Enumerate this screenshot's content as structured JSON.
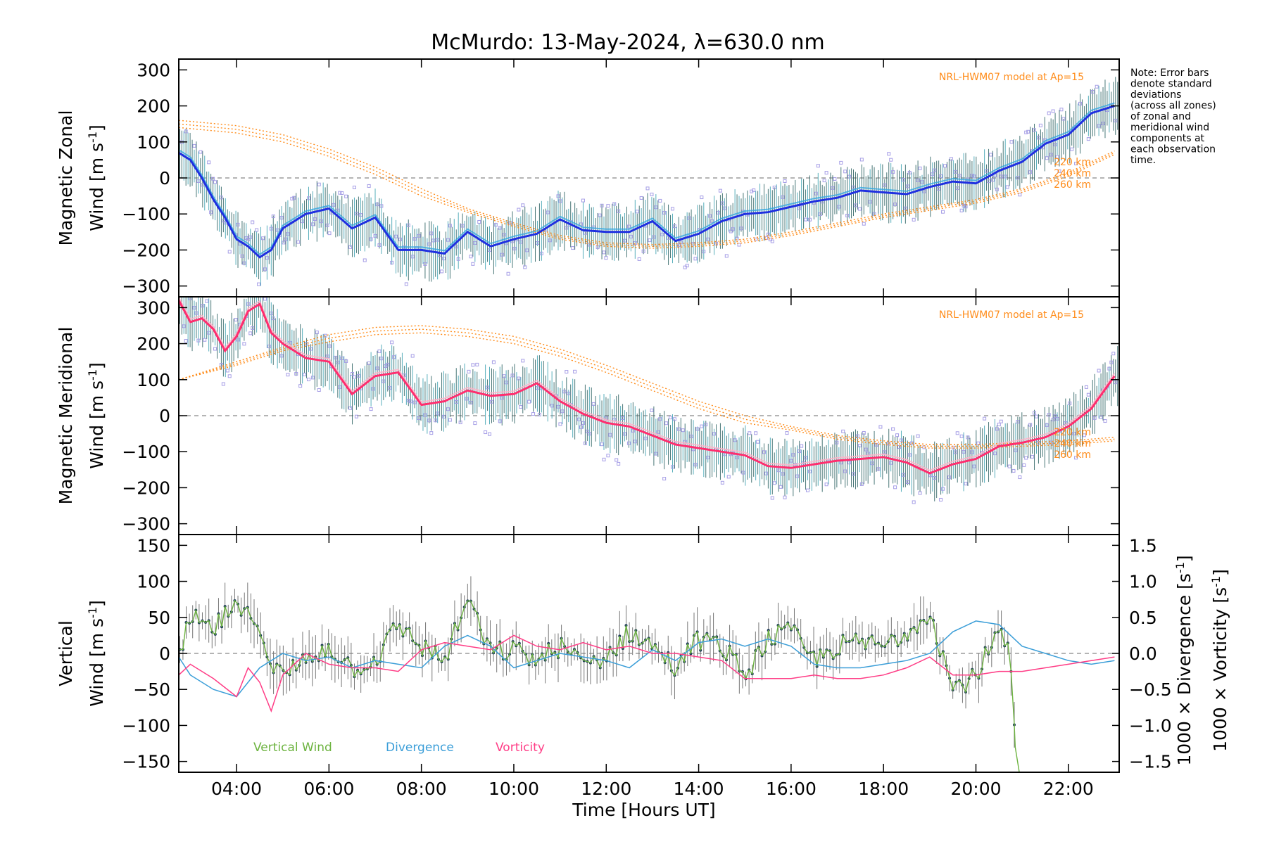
{
  "chart_data": {
    "title": "McMurdo: 13-May-2024, λ=630.0 nm",
    "xlabel": "Time [Hours UT]",
    "x_tick_labels": [
      "04:00",
      "06:00",
      "08:00",
      "10:00",
      "12:00",
      "14:00",
      "16:00",
      "18:00",
      "20:00",
      "22:00"
    ],
    "x_ticks_hours": [
      4,
      6,
      8,
      10,
      12,
      14,
      16,
      18,
      20,
      22
    ],
    "xlim_hours": [
      2.75,
      23.1
    ],
    "note": [
      "Note: Error bars",
      "denote standard",
      "deviations",
      "(across all zones)",
      "of zonal and",
      "meridional wind",
      "components at",
      "each observation",
      "time."
    ],
    "colors": {
      "zonal_line": "#1f2fe0",
      "zonal_light": "#35a8e0",
      "meridional_line": "#ff2d6e",
      "error_bar": "#2a6060",
      "scatter": "#a69ee6",
      "model": "#ff8c1a",
      "vertical": "#6cb33f",
      "divergence": "#3b9ed8",
      "vorticity": "#ff3d86",
      "zero_line": "#888888"
    },
    "panels": [
      {
        "id": "zonal",
        "type": "line",
        "ylabel_line1": "Magnetic Zonal",
        "ylabel_line2": "Wind [m s",
        "ylabel_sup": "-1",
        "ylabel_close": "]",
        "ylim": [
          -330,
          330
        ],
        "y_ticks": [
          300,
          200,
          100,
          0,
          -100,
          -200,
          -300
        ],
        "y_tick_labels": [
          "300",
          "200",
          "100",
          "0",
          "−100",
          "−200",
          "−300"
        ],
        "model_label": "NRL-HWM07 model at Ap=15",
        "model_altitudes": [
          "220 km",
          "240 km",
          "260 km"
        ],
        "series": {
          "x": [
            2.75,
            3.0,
            3.25,
            3.5,
            3.75,
            4.0,
            4.25,
            4.5,
            4.75,
            5.0,
            5.5,
            6.0,
            6.5,
            7.0,
            7.5,
            8.0,
            8.5,
            9.0,
            9.5,
            10.0,
            10.5,
            11.0,
            11.5,
            12.0,
            12.5,
            13.0,
            13.5,
            14.0,
            14.5,
            15.0,
            15.5,
            16.0,
            16.5,
            17.0,
            17.5,
            18.0,
            18.5,
            19.0,
            19.5,
            20.0,
            20.5,
            21.0,
            21.5,
            22.0,
            22.5,
            23.0
          ],
          "y": [
            70,
            50,
            0,
            -60,
            -110,
            -170,
            -190,
            -220,
            -200,
            -140,
            -100,
            -85,
            -140,
            -110,
            -200,
            -200,
            -210,
            -150,
            -190,
            -170,
            -155,
            -115,
            -145,
            -150,
            -150,
            -120,
            -175,
            -155,
            -120,
            -100,
            -95,
            -80,
            -65,
            -55,
            -35,
            -40,
            -45,
            -25,
            -10,
            -15,
            20,
            45,
            95,
            120,
            180,
            200
          ]
        },
        "model_series": {
          "x": [
            2.75,
            4,
            5,
            6,
            7,
            8,
            9,
            10,
            11,
            12,
            13,
            14,
            15,
            16,
            17,
            18,
            19,
            20,
            21,
            22,
            23
          ],
          "y220": [
            160,
            145,
            120,
            80,
            30,
            -30,
            -85,
            -125,
            -160,
            -180,
            -185,
            -180,
            -170,
            -150,
            -125,
            -100,
            -80,
            -60,
            -30,
            15,
            75
          ],
          "y240": [
            150,
            135,
            110,
            70,
            20,
            -40,
            -90,
            -130,
            -165,
            -185,
            -190,
            -185,
            -175,
            -155,
            -130,
            -105,
            -85,
            -65,
            -35,
            10,
            70
          ],
          "y260": [
            140,
            125,
            100,
            60,
            10,
            -50,
            -95,
            -135,
            -170,
            -190,
            -195,
            -190,
            -180,
            -160,
            -135,
            -110,
            -90,
            -70,
            -40,
            5,
            65
          ]
        }
      },
      {
        "id": "meridional",
        "type": "line",
        "ylabel_line1": "Magnetic Meridional",
        "ylabel_line2": "Wind [m s",
        "ylabel_sup": "-1",
        "ylabel_close": "]",
        "ylim": [
          -330,
          330
        ],
        "y_ticks": [
          300,
          200,
          100,
          0,
          -100,
          -200,
          -300
        ],
        "y_tick_labels": [
          "300",
          "200",
          "100",
          "0",
          "−100",
          "−200",
          "−300"
        ],
        "model_label": "NRL-HWM07 model at Ap=15",
        "model_altitudes": [
          "220 km",
          "240 km",
          "260 km"
        ],
        "series": {
          "x": [
            2.75,
            3.0,
            3.25,
            3.5,
            3.75,
            4.0,
            4.25,
            4.5,
            4.75,
            5.0,
            5.5,
            6.0,
            6.5,
            7.0,
            7.5,
            8.0,
            8.5,
            9.0,
            9.5,
            10.0,
            10.5,
            11.0,
            11.5,
            12.0,
            12.5,
            13.0,
            13.5,
            14.0,
            14.5,
            15.0,
            15.5,
            16.0,
            16.5,
            17.0,
            17.5,
            18.0,
            18.5,
            19.0,
            19.5,
            20.0,
            20.5,
            21.0,
            21.5,
            22.0,
            22.5,
            23.0
          ],
          "y": [
            320,
            260,
            270,
            240,
            180,
            220,
            290,
            310,
            230,
            200,
            160,
            150,
            60,
            110,
            120,
            30,
            40,
            70,
            55,
            60,
            90,
            40,
            5,
            -20,
            -30,
            -55,
            -80,
            -90,
            -100,
            -110,
            -140,
            -145,
            -135,
            -125,
            -120,
            -115,
            -130,
            -160,
            -135,
            -120,
            -85,
            -75,
            -60,
            -30,
            20,
            110
          ]
        },
        "model_series": {
          "x": [
            2.75,
            4,
            5,
            6,
            7,
            8,
            9,
            10,
            11,
            12,
            13,
            14,
            15,
            16,
            17,
            18,
            19,
            20,
            21,
            22,
            23
          ],
          "y220": [
            100,
            150,
            190,
            225,
            245,
            250,
            240,
            220,
            185,
            140,
            90,
            40,
            0,
            -30,
            -55,
            -70,
            -80,
            -80,
            -75,
            -70,
            -60
          ],
          "y240": [
            100,
            145,
            185,
            215,
            235,
            240,
            230,
            210,
            175,
            130,
            80,
            30,
            -10,
            -35,
            -60,
            -75,
            -85,
            -85,
            -80,
            -75,
            -65
          ],
          "y260": [
            100,
            140,
            180,
            205,
            225,
            230,
            220,
            200,
            165,
            120,
            70,
            20,
            -20,
            -40,
            -65,
            -80,
            -90,
            -90,
            -85,
            -80,
            -70
          ]
        }
      },
      {
        "id": "vertical",
        "type": "line",
        "ylabel_line1": "Vertical",
        "ylabel_line2": "Wind [m s",
        "ylabel_sup": "-1",
        "ylabel_close": "]",
        "ylim": [
          -165,
          165
        ],
        "y_ticks": [
          150,
          100,
          50,
          0,
          -50,
          -100,
          -150
        ],
        "y_tick_labels": [
          "150",
          "100",
          "50",
          "0",
          "−50",
          "−100",
          "−150"
        ],
        "right_ylim": [
          -1.65,
          1.65
        ],
        "right_ticks": [
          1.5,
          1.0,
          0.5,
          0.0,
          -0.5,
          -1.0,
          -1.5
        ],
        "right_tick_labels": [
          "1.5",
          "1.0",
          "0.5",
          "0.0",
          "−0.5",
          "−1.0",
          "−1.5"
        ],
        "right_label_div": "1000 × Divergence [s",
        "right_label_vor": "1000 × Vorticity [s",
        "legend": [
          "Vertical Wind",
          "Divergence",
          "Vorticity"
        ],
        "vertical_wind": {
          "x": [
            2.75,
            3.0,
            3.25,
            3.5,
            3.75,
            4.0,
            4.25,
            4.5,
            4.75,
            5.0,
            5.5,
            6.0,
            6.5,
            7.0,
            7.5,
            8.0,
            8.5,
            9.0,
            9.5,
            10.0,
            10.5,
            11.0,
            11.5,
            12.0,
            12.5,
            13.0,
            13.5,
            14.0,
            14.5,
            15.0,
            15.5,
            16.0,
            16.5,
            17.0,
            17.5,
            18.0,
            18.5,
            19.0,
            19.5,
            20.0,
            20.5,
            20.75,
            20.85
          ],
          "y": [
            -10,
            50,
            40,
            30,
            55,
            60,
            50,
            45,
            -20,
            -30,
            -10,
            10,
            -20,
            -10,
            40,
            10,
            -10,
            75,
            0,
            5,
            -10,
            10,
            -15,
            -5,
            30,
            10,
            -20,
            20,
            10,
            -30,
            20,
            30,
            -10,
            10,
            15,
            10,
            30,
            60,
            -50,
            -30,
            30,
            -10,
            -130
          ]
        },
        "divergence": {
          "x": [
            2.75,
            3.0,
            3.5,
            4.0,
            4.5,
            5.0,
            5.5,
            6.0,
            6.5,
            7.0,
            7.5,
            8.0,
            8.5,
            9.0,
            9.5,
            10.0,
            10.5,
            11.0,
            11.5,
            12.0,
            12.5,
            13.0,
            13.5,
            14.0,
            14.5,
            15.0,
            15.5,
            16.0,
            16.5,
            17.0,
            17.5,
            18.0,
            18.5,
            19.0,
            19.5,
            20.0,
            20.5,
            21.0,
            21.5,
            22.0,
            22.5,
            23.0
          ],
          "y": [
            -0.05,
            -0.3,
            -0.5,
            -0.6,
            -0.2,
            0.0,
            -0.1,
            -0.05,
            -0.2,
            -0.1,
            -0.15,
            -0.2,
            0.1,
            0.25,
            0.1,
            -0.2,
            -0.1,
            0.0,
            -0.05,
            -0.1,
            -0.2,
            0.05,
            -0.1,
            0.15,
            0.2,
            0.1,
            0.2,
            0.1,
            -0.15,
            -0.2,
            -0.2,
            -0.15,
            -0.1,
            0.0,
            0.3,
            0.45,
            0.4,
            0.1,
            0.0,
            -0.1,
            -0.15,
            -0.1
          ]
        },
        "vorticity": {
          "x": [
            2.75,
            3.0,
            3.5,
            4.0,
            4.25,
            4.5,
            4.75,
            5.0,
            5.5,
            6.0,
            6.5,
            7.0,
            7.5,
            8.0,
            8.5,
            9.0,
            9.5,
            10.0,
            10.5,
            11.0,
            11.5,
            12.0,
            12.5,
            13.0,
            13.5,
            14.0,
            14.5,
            15.0,
            15.5,
            16.0,
            16.5,
            17.0,
            17.5,
            18.0,
            18.5,
            19.0,
            19.5,
            20.0,
            20.5,
            21.0,
            21.5,
            22.0,
            22.5,
            23.0
          ],
          "y": [
            -0.3,
            -0.15,
            -0.35,
            -0.6,
            -0.2,
            -0.4,
            -0.8,
            -0.3,
            0.0,
            -0.15,
            -0.2,
            -0.2,
            -0.25,
            0.05,
            0.15,
            0.1,
            0.05,
            0.25,
            0.1,
            0.05,
            0.15,
            0.05,
            0.1,
            0.0,
            0.0,
            -0.05,
            -0.1,
            -0.35,
            -0.35,
            -0.35,
            -0.3,
            -0.35,
            -0.35,
            -0.3,
            -0.2,
            -0.05,
            -0.3,
            -0.3,
            -0.25,
            -0.25,
            -0.2,
            -0.15,
            -0.1,
            -0.05
          ]
        }
      }
    ]
  }
}
